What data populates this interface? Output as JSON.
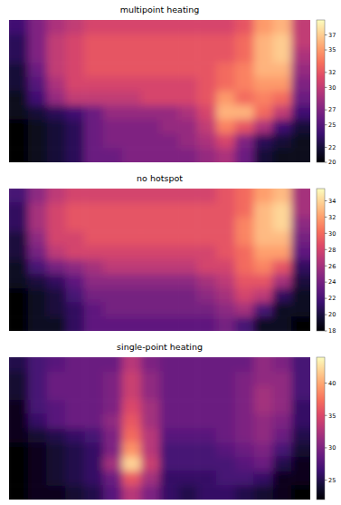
{
  "chart_data": [
    {
      "type": "heatmap",
      "title": "multipoint heating",
      "tick_labels": false,
      "colorbar_range": [
        20,
        39
      ],
      "colorbar_ticks": [
        20,
        22,
        25,
        27,
        30,
        32,
        35,
        37
      ],
      "cells": [
        [
          24,
          27,
          29,
          30,
          31,
          31,
          31,
          31,
          31,
          31,
          31,
          31,
          32,
          35,
          36,
          30
        ],
        [
          23,
          27,
          30,
          31,
          32,
          32,
          32,
          32,
          32,
          32,
          32,
          32,
          33,
          36,
          37,
          30
        ],
        [
          23,
          27,
          30,
          31,
          32,
          32,
          32,
          32,
          32,
          32,
          32,
          32,
          33,
          36,
          37,
          29
        ],
        [
          22,
          26,
          30,
          31,
          32,
          32,
          32,
          32,
          32,
          32,
          32,
          33,
          34,
          36,
          36,
          28
        ],
        [
          22,
          25,
          29,
          31,
          31,
          31,
          31,
          31,
          31,
          31,
          32,
          33,
          34,
          35,
          35,
          27
        ],
        [
          21,
          24,
          28,
          30,
          30,
          30,
          30,
          31,
          31,
          31,
          32,
          35,
          33,
          34,
          33,
          26
        ],
        [
          21,
          22,
          23,
          24,
          26,
          28,
          28,
          28,
          28,
          29,
          31,
          36,
          36,
          33,
          30,
          24
        ],
        [
          20,
          21,
          22,
          23,
          26,
          27,
          27,
          27,
          28,
          28,
          30,
          34,
          32,
          29,
          24,
          22
        ],
        [
          20,
          21,
          22,
          23,
          26,
          27,
          27,
          27,
          27,
          28,
          29,
          31,
          27,
          23,
          22,
          21
        ],
        [
          20,
          21,
          22,
          23,
          26,
          26,
          27,
          27,
          27,
          27,
          28,
          29,
          26,
          22,
          21,
          21
        ]
      ]
    },
    {
      "type": "heatmap",
      "title": "no hotspot",
      "tick_labels": false,
      "colorbar_range": [
        18,
        35.5
      ],
      "colorbar_ticks": [
        18,
        20,
        22,
        24,
        26,
        28,
        30,
        32,
        34
      ],
      "cells": [
        [
          22,
          25,
          27,
          28,
          28,
          28,
          28,
          28,
          28,
          28,
          28,
          29,
          30,
          32,
          33,
          26
        ],
        [
          21,
          26,
          28,
          29,
          29,
          29,
          29,
          29,
          29,
          29,
          29,
          29,
          30,
          33,
          34,
          26
        ],
        [
          21,
          26,
          28,
          29,
          29,
          29,
          29,
          29,
          29,
          29,
          29,
          29,
          31,
          33,
          34,
          25
        ],
        [
          20,
          25,
          28,
          28,
          29,
          29,
          29,
          29,
          29,
          29,
          29,
          29,
          31,
          33,
          33,
          24
        ],
        [
          20,
          24,
          27,
          28,
          28,
          28,
          28,
          28,
          28,
          28,
          28,
          29,
          30,
          32,
          32,
          23
        ],
        [
          19,
          22,
          24,
          25,
          26,
          27,
          27,
          27,
          27,
          27,
          28,
          28,
          30,
          31,
          29,
          21
        ],
        [
          19,
          20,
          21,
          23,
          25,
          25,
          25,
          25,
          25,
          25,
          26,
          27,
          29,
          29,
          26,
          20
        ],
        [
          18,
          19,
          20,
          22,
          24,
          24,
          24,
          24,
          24,
          24,
          25,
          26,
          28,
          27,
          21,
          19
        ],
        [
          18,
          19,
          20,
          21,
          23,
          24,
          24,
          24,
          24,
          24,
          24,
          25,
          26,
          22,
          19,
          19
        ],
        [
          18,
          19,
          19,
          21,
          23,
          23,
          23,
          23,
          23,
          23,
          23,
          24,
          22,
          19,
          19,
          18
        ]
      ]
    },
    {
      "type": "heatmap",
      "title": "single-point heating",
      "tick_labels": false,
      "colorbar_range": [
        22,
        44
      ],
      "colorbar_ticks": [
        25,
        30,
        35,
        40
      ],
      "cells": [
        [
          25,
          27,
          28,
          29,
          29,
          29,
          33,
          30,
          29,
          29,
          29,
          29,
          29,
          31,
          30,
          27
        ],
        [
          24,
          27,
          29,
          29,
          29,
          30,
          34,
          31,
          29,
          29,
          29,
          29,
          30,
          31,
          31,
          27
        ],
        [
          24,
          27,
          29,
          29,
          29,
          30,
          34,
          31,
          29,
          29,
          29,
          29,
          30,
          32,
          31,
          27
        ],
        [
          23,
          27,
          28,
          29,
          29,
          30,
          35,
          32,
          29,
          29,
          29,
          29,
          30,
          32,
          31,
          26
        ],
        [
          23,
          26,
          28,
          29,
          29,
          31,
          36,
          32,
          29,
          29,
          29,
          29,
          30,
          31,
          30,
          26
        ],
        [
          23,
          24,
          25,
          26,
          27,
          30,
          37,
          33,
          28,
          28,
          28,
          29,
          30,
          31,
          29,
          25
        ],
        [
          22,
          23,
          24,
          25,
          26,
          30,
          39,
          33,
          27,
          27,
          27,
          28,
          29,
          30,
          27,
          24
        ],
        [
          22,
          23,
          24,
          25,
          26,
          32,
          42,
          34,
          27,
          27,
          27,
          27,
          28,
          29,
          25,
          23
        ],
        [
          22,
          23,
          24,
          25,
          26,
          29,
          36,
          32,
          26,
          26,
          26,
          27,
          27,
          26,
          23,
          23
        ],
        [
          22,
          23,
          23,
          24,
          25,
          28,
          33,
          30,
          26,
          25,
          26,
          26,
          25,
          24,
          23,
          22
        ]
      ]
    }
  ]
}
